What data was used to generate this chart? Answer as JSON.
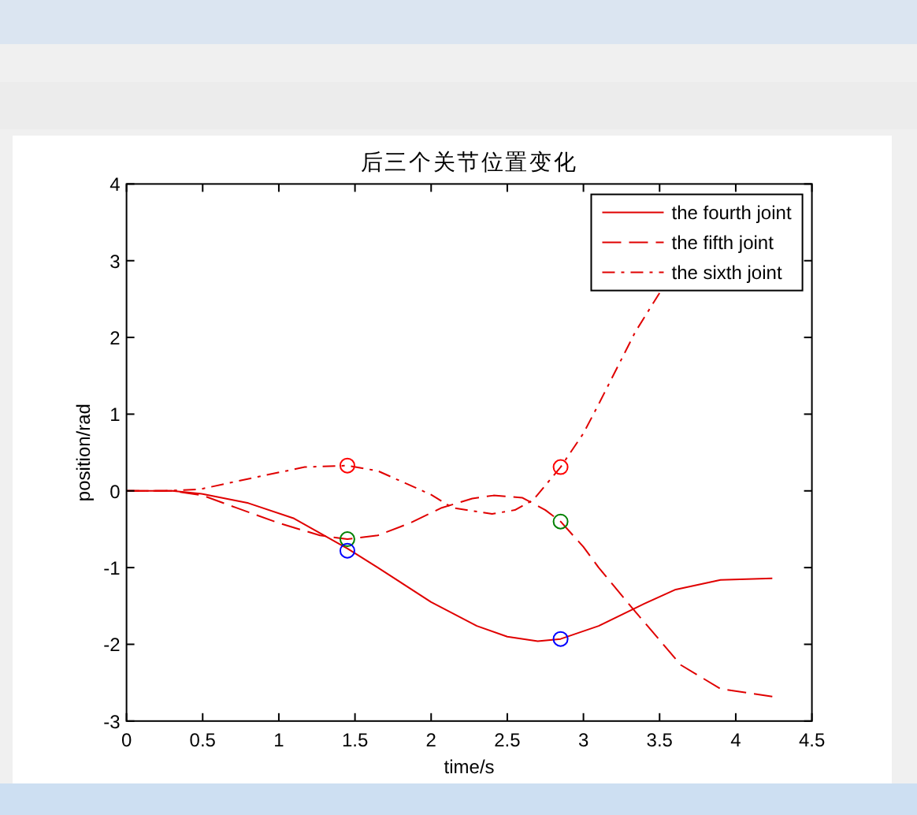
{
  "chart_data": {
    "type": "line",
    "title": "后三个关节位置变化",
    "xlabel": "time/s",
    "ylabel": "position/rad",
    "xlim": [
      0,
      4.5
    ],
    "ylim": [
      -3,
      4
    ],
    "xticks": [
      0,
      0.5,
      1,
      1.5,
      2,
      2.5,
      3,
      3.5,
      4,
      4.5
    ],
    "yticks": [
      -3,
      -2,
      -1,
      0,
      1,
      2,
      3,
      4
    ],
    "legend": "top right",
    "series": [
      {
        "name": "the fourth joint",
        "color": "#e00000",
        "line_style": "solid",
        "marker": "none",
        "x": [
          0,
          0.3,
          0.5,
          0.8,
          1.1,
          1.45,
          1.65,
          2.0,
          2.3,
          2.5,
          2.7,
          2.85,
          3.1,
          3.4,
          3.6,
          3.9,
          4.24
        ],
        "values": [
          0,
          0,
          -0.04,
          -0.16,
          -0.36,
          -0.75,
          -1.0,
          -1.45,
          -1.76,
          -1.9,
          -1.96,
          -1.93,
          -1.76,
          -1.47,
          -1.29,
          -1.16,
          -1.14
        ]
      },
      {
        "name": "the fifth joint",
        "color": "#e00000",
        "line_style": "dashed",
        "marker": "none",
        "x": [
          0,
          0.3,
          0.5,
          0.72,
          1.0,
          1.27,
          1.45,
          1.65,
          1.86,
          2.07,
          2.27,
          2.41,
          2.6,
          2.75,
          2.85,
          3.0,
          3.1,
          3.33,
          3.64,
          3.9,
          4.24
        ],
        "values": [
          0,
          0,
          -0.06,
          -0.22,
          -0.42,
          -0.58,
          -0.63,
          -0.58,
          -0.42,
          -0.22,
          -0.1,
          -0.06,
          -0.09,
          -0.25,
          -0.4,
          -0.73,
          -1.0,
          -1.55,
          -2.27,
          -2.58,
          -2.68
        ]
      },
      {
        "name": "the sixth joint",
        "color": "#e00000",
        "line_style": "dashdot",
        "marker": "none",
        "x": [
          0,
          0.25,
          0.48,
          0.83,
          1.17,
          1.45,
          1.65,
          2.0,
          2.14,
          2.4,
          2.55,
          2.67,
          2.85,
          3.0,
          3.1,
          3.34,
          3.5
        ],
        "values": [
          0,
          0,
          0.02,
          0.17,
          0.31,
          0.33,
          0.26,
          -0.05,
          -0.22,
          -0.3,
          -0.25,
          -0.12,
          0.31,
          0.75,
          1.13,
          2.07,
          2.58
        ]
      },
      {
        "type": "scatter",
        "color": "#ff0000",
        "marker": "circle",
        "x": [
          1.45,
          2.85
        ],
        "values": [
          0.33,
          0.31
        ]
      },
      {
        "type": "scatter",
        "color": "#008000",
        "marker": "circle",
        "x": [
          1.45,
          2.85
        ],
        "values": [
          -0.63,
          -0.4
        ]
      },
      {
        "type": "scatter",
        "color": "#0000ff",
        "marker": "circle",
        "x": [
          1.45,
          2.85
        ],
        "values": [
          -0.78,
          -1.93
        ]
      }
    ]
  }
}
